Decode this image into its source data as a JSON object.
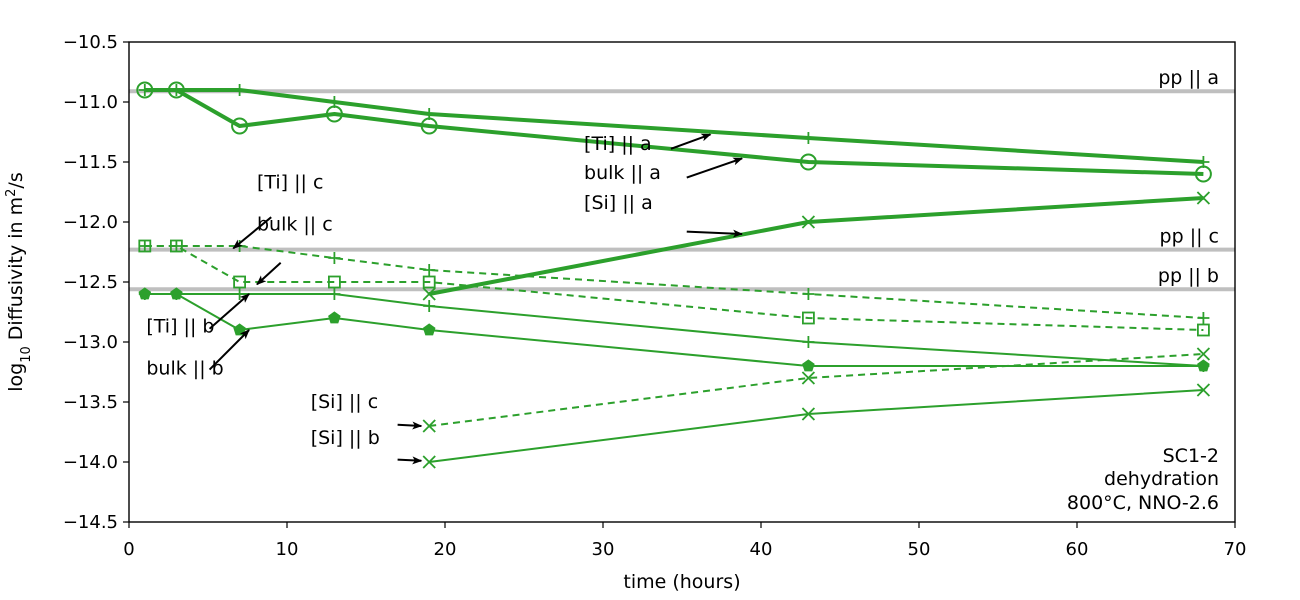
{
  "chart_data": {
    "type": "line",
    "title": "",
    "xlabel": "time (hours)",
    "ylabel": "log10 Diffusivity in m2/s",
    "ylabel_parts": {
      "prefix": "log",
      "sub": "10",
      "middle": " Diffusivity in m",
      "sup": "2",
      "suffix": "/s"
    },
    "xlim": [
      0,
      70
    ],
    "ylim": [
      -14.5,
      -10.5
    ],
    "xticks": [
      0,
      10,
      20,
      30,
      40,
      50,
      60,
      70
    ],
    "yticks": [
      -14.5,
      -14.0,
      -13.5,
      -13.0,
      -12.5,
      -12.0,
      -11.5,
      -11.0,
      -10.5
    ],
    "ytick_labels": [
      "−14.5",
      "−14.0",
      "−13.5",
      "−13.0",
      "−12.5",
      "−12.0",
      "−11.5",
      "−11.0",
      "−10.5"
    ],
    "grid": false,
    "line_color": "#2ca02c",
    "reference_color": "#bfbfbf",
    "reference_lines": [
      {
        "label": "pp || a",
        "y": -10.91
      },
      {
        "label": "pp || c",
        "y": -12.23
      },
      {
        "label": "pp || b",
        "y": -12.56
      }
    ],
    "series": [
      {
        "annotation": "[Ti] || a",
        "marker": "plus",
        "style": "solid",
        "weight": "thick",
        "x": [
          1,
          3,
          7,
          13,
          19,
          43,
          68
        ],
        "y": [
          -10.9,
          -10.9,
          -10.9,
          -11.0,
          -11.1,
          -11.3,
          -11.5
        ]
      },
      {
        "annotation": "bulk || a",
        "marker": "circle",
        "style": "solid",
        "weight": "thick",
        "x": [
          1,
          3,
          7,
          13,
          19,
          43,
          68
        ],
        "y": [
          -10.9,
          -10.9,
          -11.2,
          -11.1,
          -11.2,
          -11.5,
          -11.6
        ]
      },
      {
        "annotation": "[Si] || a",
        "marker": "x",
        "style": "solid",
        "weight": "thick",
        "x": [
          19,
          43,
          68
        ],
        "y": [
          -12.6,
          -12.0,
          -11.8
        ]
      },
      {
        "annotation": "[Ti] || c",
        "marker": "plus",
        "style": "dashed",
        "weight": "thin",
        "x": [
          1,
          3,
          7,
          13,
          19,
          43,
          68
        ],
        "y": [
          -12.2,
          -12.2,
          -12.2,
          -12.3,
          -12.4,
          -12.6,
          -12.8
        ]
      },
      {
        "annotation": "bulk || c",
        "marker": "square",
        "style": "dashed",
        "weight": "thin",
        "x": [
          1,
          3,
          7,
          13,
          19,
          43,
          68
        ],
        "y": [
          -12.2,
          -12.2,
          -12.5,
          -12.5,
          -12.5,
          -12.8,
          -12.9
        ]
      },
      {
        "annotation": "[Ti] || b",
        "marker": "plus",
        "style": "solid",
        "weight": "thin",
        "x": [
          1,
          3,
          7,
          13,
          19,
          43,
          68
        ],
        "y": [
          -12.6,
          -12.6,
          -12.6,
          -12.6,
          -12.7,
          -13.0,
          -13.2
        ]
      },
      {
        "annotation": "bulk || b",
        "marker": "pentagon",
        "style": "solid",
        "weight": "thin",
        "x": [
          1,
          3,
          7,
          13,
          19,
          43,
          68
        ],
        "y": [
          -12.6,
          -12.6,
          -12.9,
          -12.8,
          -12.9,
          -13.2,
          -13.2
        ]
      },
      {
        "annotation": "[Si] || c",
        "marker": "x",
        "style": "dashed",
        "weight": "thin",
        "x": [
          19,
          43,
          68
        ],
        "y": [
          -13.7,
          -13.3,
          -13.1
        ]
      },
      {
        "annotation": "[Si] || b",
        "marker": "x",
        "style": "solid",
        "weight": "thin",
        "x": [
          19,
          43,
          68
        ],
        "y": [
          -14.0,
          -13.6,
          -13.4
        ]
      }
    ],
    "annotations": [
      {
        "text": "[Ti] || a",
        "tx": 28.8,
        "ty": -11.4,
        "ax": 36.8,
        "ay": -11.27,
        "sx": 34.3,
        "sy": -11.39
      },
      {
        "text": "bulk || a",
        "tx": 28.8,
        "ty": -11.64,
        "ax": 38.8,
        "ay": -11.47,
        "sx": 35.3,
        "sy": -11.63
      },
      {
        "text": "[Si] || a",
        "tx": 28.8,
        "ty": -11.89,
        "ax": 38.8,
        "ay": -12.1,
        "sx": 35.3,
        "sy": -12.08
      },
      {
        "text": "[Ti] || c",
        "tx": 8.1,
        "ty": -11.72,
        "ax": 6.6,
        "ay": -12.22,
        "sx": 9.0,
        "sy": -11.96
      },
      {
        "text": "bulk || c",
        "tx": 8.1,
        "ty": -12.07,
        "ax": 8.1,
        "ay": -12.52,
        "sx": 9.6,
        "sy": -12.34
      },
      {
        "text": "[Ti] || b",
        "tx": 1.1,
        "ty": -12.92,
        "ax": 7.6,
        "ay": -12.6,
        "sx": 5.1,
        "sy": -12.89
      },
      {
        "text": "bulk || b",
        "tx": 1.1,
        "ty": -13.27,
        "ax": 7.6,
        "ay": -12.9,
        "sx": 5.1,
        "sy": -13.23
      },
      {
        "text": "[Si] || c",
        "tx": 11.5,
        "ty": -13.55,
        "ax": 18.5,
        "ay": -13.7,
        "sx": 17.0,
        "sy": -13.69
      },
      {
        "text": "[Si] || b",
        "tx": 11.5,
        "ty": -13.85,
        "ax": 18.5,
        "ay": -13.99,
        "sx": 17.0,
        "sy": -13.98
      }
    ],
    "corner_text": [
      "SC1-2",
      "dehydration",
      "800°C, NNO-2.6"
    ]
  }
}
